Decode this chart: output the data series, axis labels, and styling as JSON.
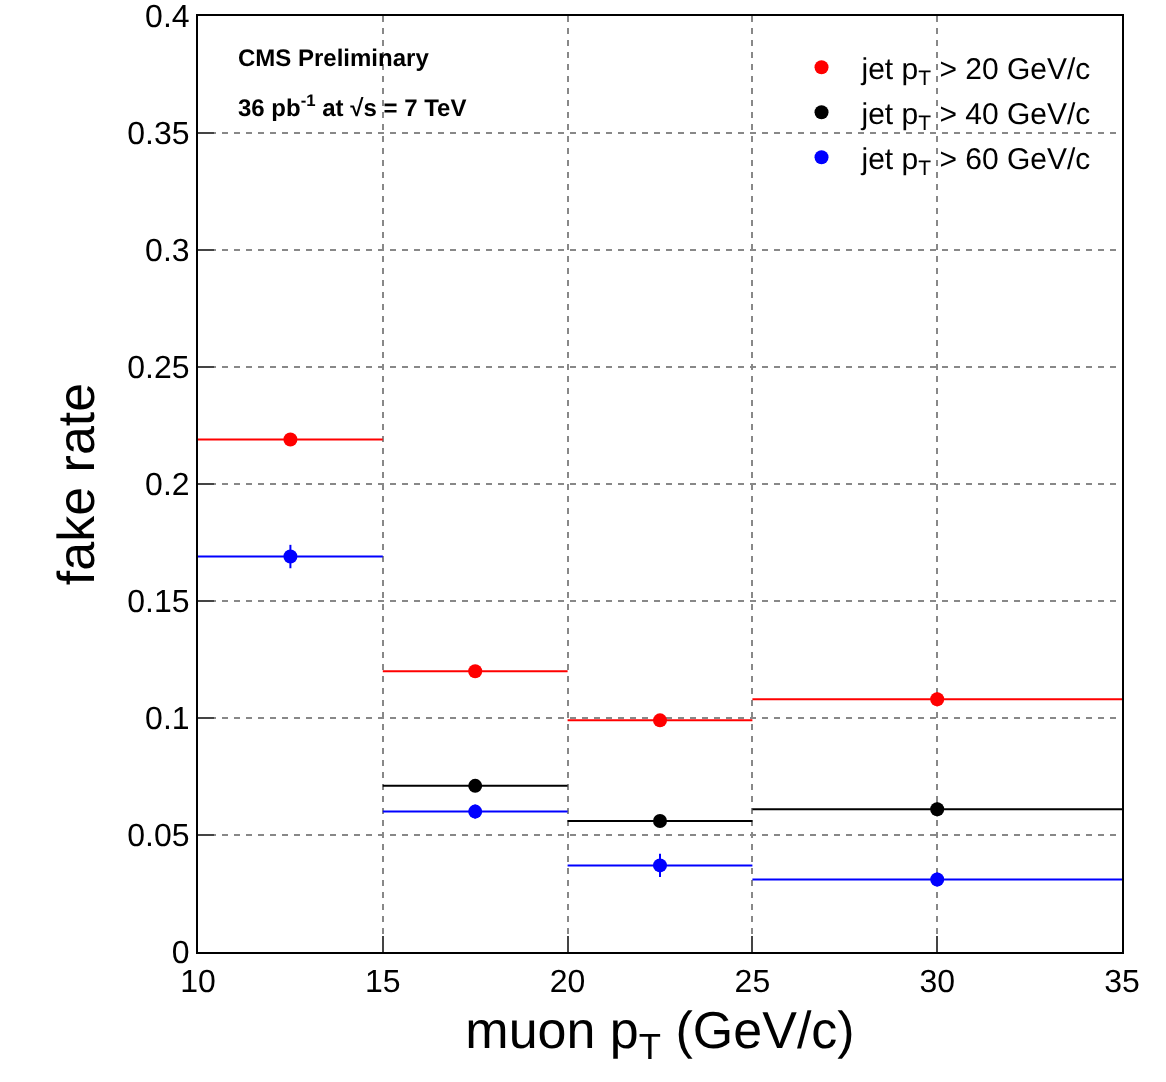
{
  "chart_data": {
    "type": "scatter",
    "xlabel": "muon p$_{T}$ (GeV/c)",
    "ylabel": "fake rate",
    "annotations": [
      "CMS Preliminary",
      "36 pb$^{-1}$ at √s = 7 TeV"
    ],
    "x": [
      12.5,
      17.5,
      22.5,
      30
    ],
    "series": [
      {
        "name": "jet p$_{T}$ > 20 GeV/c",
        "color": "#ff0000",
        "values": [
          0.219,
          0.12,
          0.099,
          0.108
        ],
        "errors": [
          0.002,
          0.002,
          0.002,
          0.003
        ],
        "xerrors": [
          2.5,
          2.5,
          2.5,
          5
        ]
      },
      {
        "name": "jet p$_{T}$ > 40 GeV/c",
        "color": "#000000",
        "values": [
          null,
          0.071,
          0.056,
          0.061
        ],
        "errors": [
          null,
          0.002,
          0.002,
          0.003
        ],
        "xerrors": [
          null,
          2.5,
          2.5,
          5
        ]
      },
      {
        "name": "jet p$_{T}$ > 60 GeV/c",
        "color": "#0000ff",
        "values": [
          0.169,
          0.06,
          0.037,
          0.031
        ],
        "errors": [
          0.005,
          0.003,
          0.005,
          0.003
        ],
        "xerrors": [
          2.5,
          2.5,
          2.5,
          5
        ]
      }
    ],
    "xlim": [
      10,
      35
    ],
    "xticks": [
      10,
      15,
      20,
      25,
      30,
      35
    ],
    "ylim": [
      0,
      0.4
    ],
    "yticks": [
      0,
      0.05,
      0.1,
      0.15,
      0.2,
      0.25,
      0.3,
      0.35,
      0.4
    ],
    "grid": true,
    "legend": "top right",
    "marker": "circle"
  }
}
